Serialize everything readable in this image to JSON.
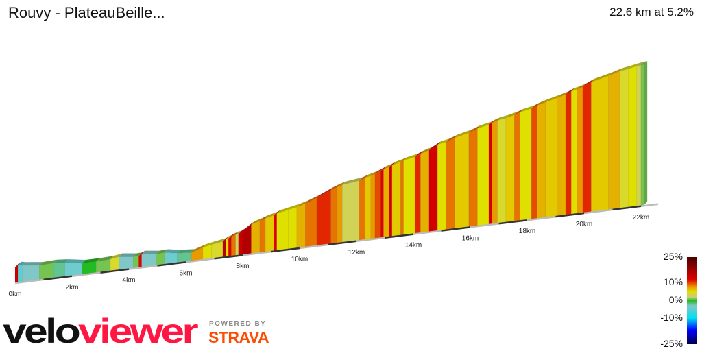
{
  "header": {
    "title": "Rouvy - PlateauBeille...",
    "summary": "22.6 km at 5.2%"
  },
  "chart_data": {
    "type": "area",
    "title": "Rouvy - PlateauBeille...",
    "subtitle": "22.6 km at 5.2%",
    "xlabel": "",
    "ylabel": "",
    "x_unit": "km",
    "xlim": [
      0,
      22.6
    ],
    "x_ticks": [
      "0km",
      "2km",
      "4km",
      "6km",
      "8km",
      "10km",
      "12km",
      "14km",
      "16km",
      "18km",
      "20km",
      "22km"
    ],
    "color_by": "gradient",
    "segments": [
      {
        "length_km": 0.1,
        "gradient": 14
      },
      {
        "length_km": 0.15,
        "gradient": -5
      },
      {
        "length_km": 0.6,
        "gradient": -3
      },
      {
        "length_km": 0.5,
        "gradient": 1
      },
      {
        "length_km": 0.4,
        "gradient": -2
      },
      {
        "length_km": 0.6,
        "gradient": -4
      },
      {
        "length_km": 0.5,
        "gradient": 0
      },
      {
        "length_km": 0.5,
        "gradient": 1
      },
      {
        "length_km": 0.3,
        "gradient": 4
      },
      {
        "length_km": 0.5,
        "gradient": -3
      },
      {
        "length_km": 0.2,
        "gradient": 1
      },
      {
        "length_km": 0.1,
        "gradient": 12
      },
      {
        "length_km": 0.5,
        "gradient": -3
      },
      {
        "length_km": 0.3,
        "gradient": 1
      },
      {
        "length_km": 0.45,
        "gradient": -4
      },
      {
        "length_km": 0.5,
        "gradient": -2
      },
      {
        "length_km": 0.4,
        "gradient": 8
      },
      {
        "length_km": 0.3,
        "gradient": 5
      },
      {
        "length_km": 0.4,
        "gradient": 4
      },
      {
        "length_km": 0.1,
        "gradient": 15
      },
      {
        "length_km": 0.1,
        "gradient": 5
      },
      {
        "length_km": 0.1,
        "gradient": 12
      },
      {
        "length_km": 0.15,
        "gradient": 9
      },
      {
        "length_km": 0.1,
        "gradient": 3
      },
      {
        "length_km": 0.15,
        "gradient": 14
      },
      {
        "length_km": 0.3,
        "gradient": 16
      },
      {
        "length_km": 0.3,
        "gradient": 7
      },
      {
        "length_km": 0.2,
        "gradient": 9
      },
      {
        "length_km": 0.3,
        "gradient": 6
      },
      {
        "length_km": 0.1,
        "gradient": 12
      },
      {
        "length_km": 0.4,
        "gradient": 5
      },
      {
        "length_km": 0.3,
        "gradient": 5
      },
      {
        "length_km": 0.3,
        "gradient": 7
      },
      {
        "length_km": 0.4,
        "gradient": 9
      },
      {
        "length_km": 0.5,
        "gradient": 11
      },
      {
        "length_km": 0.2,
        "gradient": 9
      },
      {
        "length_km": 0.2,
        "gradient": 8
      },
      {
        "length_km": 0.6,
        "gradient": 3
      },
      {
        "length_km": 0.2,
        "gradient": 9
      },
      {
        "length_km": 0.2,
        "gradient": 6
      },
      {
        "length_km": 0.15,
        "gradient": 8
      },
      {
        "length_km": 0.2,
        "gradient": 10
      },
      {
        "length_km": 0.1,
        "gradient": 12
      },
      {
        "length_km": 0.2,
        "gradient": 7
      },
      {
        "length_km": 0.1,
        "gradient": 13
      },
      {
        "length_km": 0.3,
        "gradient": 6
      },
      {
        "length_km": 0.1,
        "gradient": 9
      },
      {
        "length_km": 0.4,
        "gradient": 5
      },
      {
        "length_km": 0.2,
        "gradient": 11
      },
      {
        "length_km": 0.3,
        "gradient": 7
      },
      {
        "length_km": 0.3,
        "gradient": 13
      },
      {
        "length_km": 0.3,
        "gradient": 5
      },
      {
        "length_km": 0.3,
        "gradient": 9
      },
      {
        "length_km": 0.5,
        "gradient": 6
      },
      {
        "length_km": 0.3,
        "gradient": 9
      },
      {
        "length_km": 0.4,
        "gradient": 5
      },
      {
        "length_km": 0.1,
        "gradient": 13
      },
      {
        "length_km": 0.2,
        "gradient": 8
      },
      {
        "length_km": 0.3,
        "gradient": 4
      },
      {
        "length_km": 0.3,
        "gradient": 6
      },
      {
        "length_km": 0.2,
        "gradient": 9
      },
      {
        "length_km": 0.4,
        "gradient": 5
      },
      {
        "length_km": 0.2,
        "gradient": 10
      },
      {
        "length_km": 0.3,
        "gradient": 7
      },
      {
        "length_km": 0.4,
        "gradient": 6
      },
      {
        "length_km": 0.3,
        "gradient": 7
      },
      {
        "length_km": 0.2,
        "gradient": 11
      },
      {
        "length_km": 0.2,
        "gradient": 5
      },
      {
        "length_km": 0.2,
        "gradient": 8
      },
      {
        "length_km": 0.3,
        "gradient": 11
      },
      {
        "length_km": 0.6,
        "gradient": 6
      },
      {
        "length_km": 0.4,
        "gradient": 7
      },
      {
        "length_km": 0.3,
        "gradient": 4
      },
      {
        "length_km": 0.3,
        "gradient": 5
      },
      {
        "length_km": 0.15,
        "gradient": 3
      },
      {
        "length_km": 0.1,
        "gradient": 1
      }
    ],
    "legend": {
      "labels": [
        "25%",
        "10%",
        "0%",
        "-10%",
        "-25%"
      ],
      "colors": [
        {
          "g": -25,
          "c": "#00004a"
        },
        {
          "g": -17,
          "c": "#0000ff"
        },
        {
          "g": -10,
          "c": "#00e0f0"
        },
        {
          "g": -3,
          "c": "#80c8c8"
        },
        {
          "g": 0,
          "c": "#22bb22"
        },
        {
          "g": 2,
          "c": "#c8cc80"
        },
        {
          "g": 5,
          "c": "#e0e000"
        },
        {
          "g": 8,
          "c": "#e89a00"
        },
        {
          "g": 12,
          "c": "#e00000"
        },
        {
          "g": 25,
          "c": "#4a0000"
        }
      ]
    }
  },
  "branding": {
    "logo_text_dark": "velo",
    "logo_text_red": "viewer",
    "powered_by": "POWERED BY",
    "strava": "STRAVA"
  },
  "colors": {
    "brand_red": "#ff1744",
    "strava_orange": "#fc4c02"
  }
}
